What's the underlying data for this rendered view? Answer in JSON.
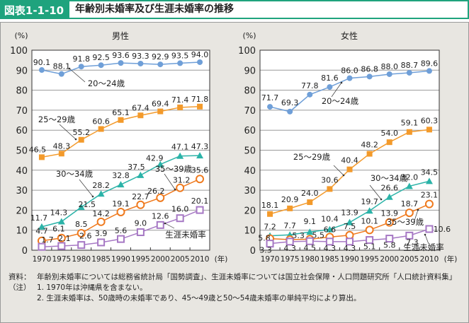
{
  "header": {
    "figure_label": "図表1-1-10",
    "title": "年齢別未婚率及び生涯未婚率の推移"
  },
  "notes": {
    "source_key": "資料：",
    "source_text": "年齢別未婚率については総務省統計局「国勢調査」、生涯未婚率については国立社会保障・人口問題研究所「人口統計資料集」",
    "note_key": "（注）",
    "note_items": [
      "1. 1970年は沖縄県を含まない。",
      "2. 生涯未婚率は、50歳時の未婚率であり、45～49歳と50～54歳未婚率の単純平均により算出。"
    ]
  },
  "colors": {
    "accent": "#1fa37d",
    "series_20_24": "#6f9fd8",
    "series_25_29": "#f39a2b",
    "series_30_34": "#2bb3a8",
    "series_35_39": "#ef7a1e",
    "series_lifetime": "#a678c4"
  },
  "chart_data": [
    {
      "type": "line",
      "title": "男性",
      "ylabel": "(%)",
      "xlabel": "(年)",
      "ylim": [
        0,
        100
      ],
      "yticks": [
        0,
        10,
        20,
        30,
        40,
        50,
        60,
        70,
        80,
        90,
        100
      ],
      "grid": true,
      "x": [
        "1970",
        "1975",
        "1980",
        "1985",
        "1990",
        "1995",
        "2000",
        "2005",
        "2010"
      ],
      "series": [
        {
          "name": "20～24歳",
          "marker": "circle",
          "values": [
            90.1,
            88.1,
            91.8,
            92.5,
            93.6,
            93.3,
            92.9,
            93.5,
            94.0
          ]
        },
        {
          "name": "25～29歳",
          "marker": "square",
          "values": [
            46.5,
            48.3,
            55.2,
            60.6,
            65.1,
            67.4,
            69.4,
            71.4,
            71.8
          ]
        },
        {
          "name": "30～34歳",
          "marker": "triangle",
          "values": [
            11.7,
            14.3,
            21.5,
            28.2,
            32.8,
            37.5,
            42.9,
            47.1,
            47.3
          ]
        },
        {
          "name": "35～39歳",
          "marker": "open-circle",
          "values": [
            4.7,
            6.1,
            8.5,
            14.2,
            19.1,
            22.7,
            26.2,
            31.2,
            35.6
          ]
        },
        {
          "name": "生涯未婚率",
          "marker": "open-square",
          "values": [
            1.7,
            2.1,
            2.6,
            3.9,
            5.6,
            9.0,
            12.6,
            16.0,
            20.1
          ]
        }
      ]
    },
    {
      "type": "line",
      "title": "女性",
      "ylabel": "(%)",
      "xlabel": "(年)",
      "ylim": [
        0,
        100
      ],
      "yticks": [
        0,
        10,
        20,
        30,
        40,
        50,
        60,
        70,
        80,
        90,
        100
      ],
      "grid": true,
      "x": [
        "1970",
        "1975",
        "1980",
        "1985",
        "1990",
        "1995",
        "2000",
        "2005",
        "2010"
      ],
      "series": [
        {
          "name": "20～24歳",
          "marker": "circle",
          "values": [
            71.7,
            69.3,
            77.8,
            81.6,
            86.0,
            86.8,
            88.0,
            88.7,
            89.6
          ]
        },
        {
          "name": "25～29歳",
          "marker": "square",
          "values": [
            18.1,
            20.9,
            24.0,
            30.6,
            40.4,
            48.2,
            54.0,
            59.1,
            60.3
          ]
        },
        {
          "name": "30～34歳",
          "marker": "triangle",
          "values": [
            7.2,
            7.7,
            9.1,
            10.4,
            13.9,
            19.7,
            26.6,
            32.0,
            34.5
          ]
        },
        {
          "name": "35～39歳",
          "marker": "open-circle",
          "values": [
            5.8,
            5.3,
            5.5,
            6.6,
            7.5,
            10.1,
            13.9,
            18.7,
            23.1
          ]
        },
        {
          "name": "生涯未婚率",
          "marker": "open-square",
          "values": [
            3.3,
            4.3,
            4.5,
            4.3,
            4.3,
            5.1,
            5.8,
            7.3,
            10.6
          ]
        }
      ]
    }
  ]
}
